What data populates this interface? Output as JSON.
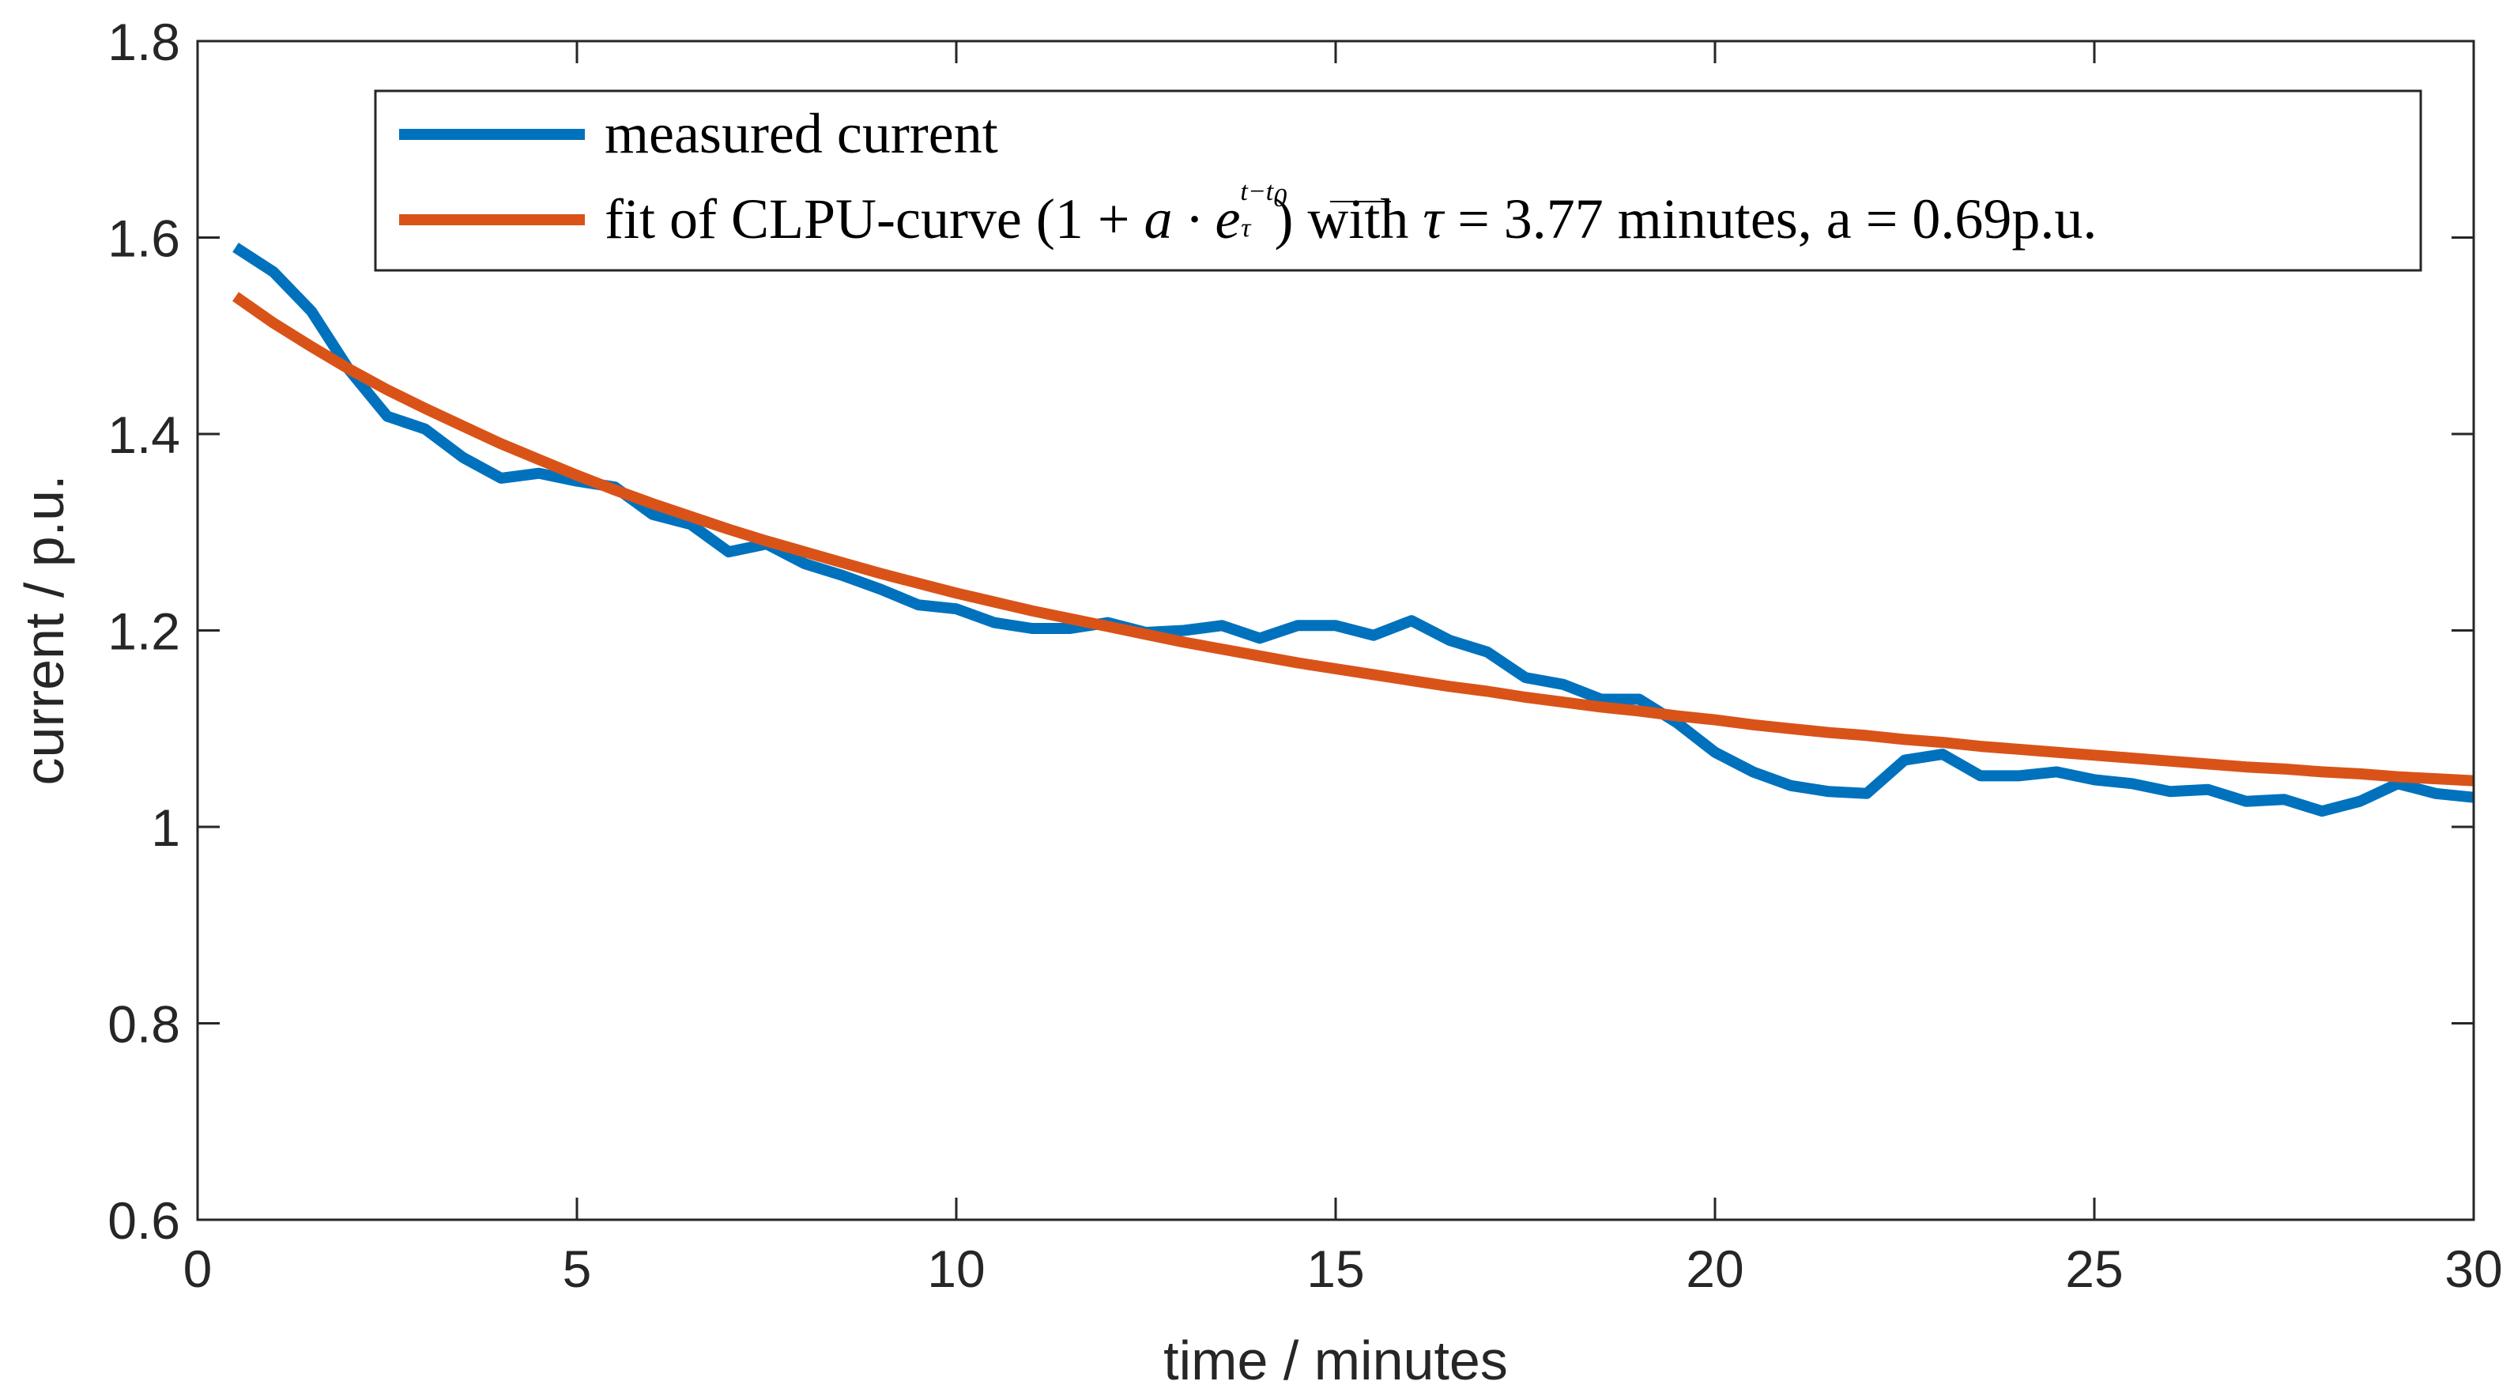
{
  "chart_data": {
    "type": "line",
    "title": "",
    "xlabel": "time / minutes",
    "ylabel": "current / p.u.",
    "xlim": [
      0,
      30
    ],
    "ylim": [
      0.6,
      1.8
    ],
    "xticks": [
      0,
      5,
      10,
      15,
      20,
      25,
      30
    ],
    "yticks": [
      0.6,
      0.8,
      1.0,
      1.2,
      1.4,
      1.6,
      1.8
    ],
    "xtick_labels": [
      "0",
      "5",
      "10",
      "15",
      "20",
      "25",
      "30"
    ],
    "ytick_labels": [
      "0.6",
      "0.8",
      "1",
      "1.2",
      "1.4",
      "1.6",
      "1.8"
    ],
    "grid": false,
    "legend_position": "top-right",
    "series": [
      {
        "name": "measured current",
        "color": "#0072BD",
        "x": [
          0.5,
          1.0,
          1.5,
          2.0,
          2.5,
          3.0,
          3.5,
          4.0,
          4.5,
          5.0,
          5.5,
          6.0,
          6.5,
          7.0,
          7.5,
          8.0,
          8.5,
          9.0,
          9.5,
          10.0,
          10.5,
          11.0,
          11.5,
          12.0,
          12.5,
          13.0,
          13.5,
          14.0,
          14.5,
          15.0,
          15.5,
          16.0,
          16.5,
          17.0,
          17.5,
          18.0,
          18.5,
          19.0,
          19.5,
          20.0,
          20.5,
          21.0,
          21.5,
          22.0,
          22.5,
          23.0,
          23.5,
          24.0,
          24.5,
          25.0,
          25.5,
          26.0,
          26.5,
          27.0,
          27.5,
          28.0,
          28.5,
          29.0,
          29.5,
          30.0
        ],
        "y": [
          1.59,
          1.565,
          1.525,
          1.465,
          1.418,
          1.405,
          1.376,
          1.355,
          1.36,
          1.352,
          1.346,
          1.318,
          1.308,
          1.28,
          1.288,
          1.268,
          1.256,
          1.242,
          1.226,
          1.222,
          1.208,
          1.202,
          1.202,
          1.208,
          1.198,
          1.2,
          1.205,
          1.192,
          1.205,
          1.205,
          1.195,
          1.21,
          1.19,
          1.178,
          1.152,
          1.145,
          1.13,
          1.13,
          1.106,
          1.076,
          1.056,
          1.042,
          1.036,
          1.034,
          1.068,
          1.074,
          1.052,
          1.052,
          1.056,
          1.048,
          1.044,
          1.036,
          1.038,
          1.026,
          1.028,
          1.016,
          1.026,
          1.044,
          1.034,
          1.03
        ]
      },
      {
        "name": "fit of CLPU-curve",
        "color": "#D95319",
        "x": [
          0.5,
          1.0,
          1.5,
          2.0,
          2.5,
          3.0,
          3.5,
          4.0,
          4.5,
          5.0,
          5.5,
          6.0,
          6.5,
          7.0,
          7.5,
          8.0,
          8.5,
          9.0,
          9.5,
          10.0,
          10.5,
          11.0,
          11.5,
          12.0,
          12.5,
          13.0,
          13.5,
          14.0,
          14.5,
          15.0,
          15.5,
          16.0,
          16.5,
          17.0,
          17.5,
          18.0,
          18.5,
          19.0,
          19.5,
          20.0,
          20.5,
          21.0,
          21.5,
          22.0,
          22.5,
          23.0,
          23.5,
          24.0,
          24.5,
          25.0,
          25.5,
          26.0,
          26.5,
          27.0,
          27.5,
          28.0,
          28.5,
          29.0,
          29.5,
          30.0
        ],
        "y": [
          1.54,
          1.513,
          1.489,
          1.466,
          1.445,
          1.426,
          1.408,
          1.39,
          1.374,
          1.358,
          1.343,
          1.329,
          1.316,
          1.303,
          1.291,
          1.28,
          1.269,
          1.258,
          1.248,
          1.238,
          1.229,
          1.22,
          1.212,
          1.204,
          1.196,
          1.188,
          1.181,
          1.174,
          1.167,
          1.161,
          1.155,
          1.149,
          1.143,
          1.138,
          1.132,
          1.127,
          1.122,
          1.118,
          1.113,
          1.109,
          1.104,
          1.1,
          1.096,
          1.093,
          1.089,
          1.086,
          1.082,
          1.079,
          1.076,
          1.073,
          1.07,
          1.067,
          1.064,
          1.061,
          1.059,
          1.056,
          1.054,
          1.051,
          1.049,
          1.047
        ]
      }
    ],
    "legend": {
      "entry1": "measured current",
      "entry2_prefix": "fit of CLPU-curve (1 + ",
      "entry2_math": "a · e",
      "entry2_exp_num": "t−t",
      "entry2_exp_sub": "0",
      "entry2_exp_den": "τ",
      "entry2_mid": ") with ",
      "entry2_tau": "τ",
      "entry2_suffix": " = 3.77 minutes, a = 0.69p.u."
    }
  }
}
